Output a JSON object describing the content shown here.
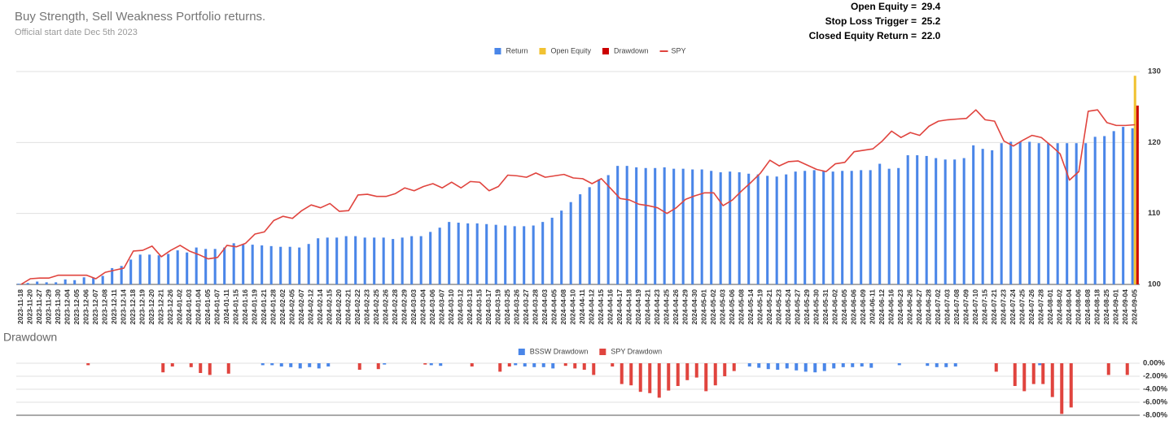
{
  "header": {
    "title": "Buy Strength, Sell Weakness Portfolio returns.",
    "subtitle": "Official start date Dec 5th 2023",
    "stats": [
      {
        "label": "Open Equity =",
        "value": "29.4"
      },
      {
        "label": "Stop Loss Trigger =",
        "value": "25.2"
      },
      {
        "label": "Closed Equity Return =",
        "value": "22.0"
      }
    ]
  },
  "chart_data": [
    {
      "type": "bar",
      "categories": [
        "2023-11-18",
        "2023-11-20",
        "2023-11-27",
        "2023-11-29",
        "2023-11-30",
        "2023-12-04",
        "2023-12-05",
        "2023-12-06",
        "2023-12-07",
        "2023-12-08",
        "2023-12-11",
        "2023-12-14",
        "2023-12-18",
        "2023-12-19",
        "2023-12-20",
        "2023-12-21",
        "2023-12-26",
        "2024-01-02",
        "2024-01-03",
        "2024-01-04",
        "2024-01-05",
        "2024-01-07",
        "2024-01-11",
        "2024-01-15",
        "2024-01-16",
        "2024-01-19",
        "2024-01-21",
        "2024-01-28",
        "2024-02-02",
        "2024-02-05",
        "2024-02-07",
        "2024-02-12",
        "2024-02-14",
        "2024-02-15",
        "2024-02-20",
        "2024-02-21",
        "2024-02-22",
        "2024-02-23",
        "2024-02-25",
        "2024-02-26",
        "2024-02-28",
        "2024-02-29",
        "2024-03-03",
        "2024-03-04",
        "2024-03-06",
        "2024-03-07",
        "2024-03-10",
        "2024-03-12",
        "2024-03-13",
        "2024-03-15",
        "2024-03-17",
        "2024-03-19",
        "2024-03-25",
        "2024-03-26",
        "2024-03-27",
        "2024-03-28",
        "2024-04-03",
        "2024-04-05",
        "2024-04-08",
        "2024-04-10",
        "2024-04-11",
        "2024-04-12",
        "2024-04-15",
        "2024-04-16",
        "2024-04-17",
        "2024-04-18",
        "2024-04-19",
        "2024-04-21",
        "2024-04-23",
        "2024-04-25",
        "2024-04-26",
        "2024-04-29",
        "2024-04-30",
        "2024-05-01",
        "2024-05-02",
        "2024-05-03",
        "2024-05-06",
        "2024-05-08",
        "2024-05-14",
        "2024-05-19",
        "2024-05-21",
        "2024-05-23",
        "2024-05-24",
        "2024-05-27",
        "2024-05-29",
        "2024-05-30",
        "2024-05-31",
        "2024-06-02",
        "2024-06-05",
        "2024-06-06",
        "2024-06-09",
        "2024-06-11",
        "2024-06-12",
        "2024-06-16",
        "2024-06-23",
        "2024-06-26",
        "2024-06-27",
        "2024-06-28",
        "2024-07-02",
        "2024-07-03",
        "2024-07-08",
        "2024-07-09",
        "2024-07-10",
        "2024-07-15",
        "2024-07-21",
        "2024-07-23",
        "2024-07-24",
        "2024-07-25",
        "2024-07-26",
        "2024-07-28",
        "2024-08-01",
        "2024-08-02",
        "2024-08-04",
        "2024-08-06",
        "2024-08-08",
        "2024-08-18",
        "2024-08-25",
        "2024-09-01",
        "2024-09-04",
        "2024-09-05"
      ],
      "series": [
        {
          "name": "Return",
          "type": "bar",
          "color": "#4a86e8",
          "values": [
            100.1,
            100.2,
            100.4,
            100.3,
            100.3,
            100.7,
            100.6,
            101.0,
            100.9,
            101.2,
            102.3,
            102.6,
            103.5,
            104.2,
            104.2,
            104.1,
            104.3,
            104.8,
            104.5,
            105.2,
            105.0,
            105.0,
            105.2,
            105.8,
            105.6,
            105.6,
            105.5,
            105.4,
            105.3,
            105.3,
            105.2,
            105.7,
            106.5,
            106.6,
            106.6,
            106.8,
            106.8,
            106.6,
            106.6,
            106.6,
            106.4,
            106.6,
            106.8,
            106.8,
            107.4,
            108.0,
            108.8,
            108.7,
            108.6,
            108.6,
            108.5,
            108.4,
            108.3,
            108.2,
            108.2,
            108.3,
            108.8,
            109.4,
            110.4,
            111.6,
            112.7,
            113.7,
            114.8,
            115.4,
            116.7,
            116.7,
            116.5,
            116.4,
            116.4,
            116.5,
            116.3,
            116.3,
            116.2,
            116.2,
            116.0,
            115.8,
            115.9,
            115.8,
            115.6,
            115.5,
            115.3,
            115.2,
            115.5,
            115.9,
            116.0,
            116.1,
            116.0,
            115.9,
            116.0,
            116.0,
            116.1,
            116.1,
            117.0,
            116.3,
            116.4,
            118.2,
            118.2,
            118.1,
            117.8,
            117.6,
            117.6,
            117.8,
            119.6,
            119.1,
            118.9,
            119.9,
            120.1,
            120.1,
            120.1,
            119.9,
            119.9,
            119.9,
            119.9,
            119.9,
            119.9,
            120.8,
            120.9,
            121.6,
            122.2,
            122.0
          ]
        },
        {
          "name": "Open Equity",
          "type": "bar",
          "color": "#f1c232",
          "values": [
            null,
            null,
            null,
            null,
            null,
            null,
            null,
            null,
            null,
            null,
            null,
            null,
            null,
            null,
            null,
            null,
            null,
            null,
            null,
            null,
            null,
            null,
            null,
            null,
            null,
            null,
            null,
            null,
            null,
            null,
            null,
            null,
            null,
            null,
            null,
            null,
            null,
            null,
            null,
            null,
            null,
            null,
            null,
            null,
            null,
            null,
            null,
            null,
            null,
            null,
            null,
            null,
            null,
            null,
            null,
            null,
            null,
            null,
            null,
            null,
            null,
            null,
            null,
            null,
            null,
            null,
            null,
            null,
            null,
            null,
            null,
            null,
            null,
            null,
            null,
            null,
            null,
            null,
            null,
            null,
            null,
            null,
            null,
            null,
            null,
            null,
            null,
            null,
            null,
            null,
            null,
            null,
            null,
            null,
            null,
            null,
            null,
            null,
            null,
            null,
            null,
            null,
            null,
            null,
            null,
            null,
            null,
            null,
            null,
            null,
            null,
            null,
            null,
            null,
            null,
            null,
            null,
            null,
            null,
            129.4
          ]
        },
        {
          "name": "Drawdown",
          "type": "bar",
          "color": "#cc0000",
          "values": [
            null,
            null,
            null,
            null,
            null,
            null,
            null,
            null,
            null,
            null,
            null,
            null,
            null,
            null,
            null,
            null,
            null,
            null,
            null,
            null,
            null,
            null,
            null,
            null,
            null,
            null,
            null,
            null,
            null,
            null,
            null,
            null,
            null,
            null,
            null,
            null,
            null,
            null,
            null,
            null,
            null,
            null,
            null,
            null,
            null,
            null,
            null,
            null,
            null,
            null,
            null,
            null,
            null,
            null,
            null,
            null,
            null,
            null,
            null,
            null,
            null,
            null,
            null,
            null,
            null,
            null,
            null,
            null,
            null,
            null,
            null,
            null,
            null,
            null,
            null,
            null,
            null,
            null,
            null,
            null,
            null,
            null,
            null,
            null,
            null,
            null,
            null,
            null,
            null,
            null,
            null,
            null,
            null,
            null,
            null,
            null,
            null,
            null,
            null,
            null,
            null,
            null,
            null,
            null,
            null,
            null,
            null,
            null,
            null,
            null,
            null,
            null,
            null,
            null,
            null,
            null,
            null,
            null,
            null,
            125.2
          ]
        },
        {
          "name": "SPY",
          "type": "line",
          "color": "#e0443e",
          "values": [
            100.0,
            100.8,
            100.9,
            100.9,
            101.3,
            101.3,
            101.3,
            101.3,
            100.8,
            101.7,
            102.0,
            102.3,
            104.7,
            104.8,
            105.4,
            103.9,
            104.8,
            105.5,
            104.7,
            104.2,
            103.6,
            103.8,
            105.5,
            105.3,
            105.8,
            107.1,
            107.4,
            109.0,
            109.6,
            109.3,
            110.4,
            111.2,
            110.8,
            111.4,
            110.3,
            110.4,
            112.6,
            112.7,
            112.4,
            112.4,
            112.8,
            113.6,
            113.2,
            113.8,
            114.2,
            113.6,
            114.4,
            113.6,
            114.5,
            114.4,
            113.2,
            113.8,
            115.4,
            115.3,
            115.1,
            115.7,
            115.1,
            115.3,
            115.5,
            115.0,
            114.9,
            114.2,
            114.9,
            113.5,
            112.1,
            111.9,
            111.3,
            111.1,
            110.8,
            110.0,
            110.8,
            112.0,
            112.5,
            112.9,
            112.9,
            111.1,
            111.9,
            113.2,
            114.4,
            115.7,
            117.5,
            116.7,
            117.3,
            117.4,
            116.8,
            116.2,
            115.9,
            117.0,
            117.2,
            118.7,
            118.9,
            119.1,
            120.2,
            121.6,
            120.7,
            121.4,
            121.0,
            122.3,
            123.0,
            123.2,
            123.3,
            123.4,
            124.6,
            123.2,
            123.0,
            120.2,
            119.5,
            120.3,
            121.0,
            120.7,
            119.6,
            118.4,
            114.7,
            115.9,
            124.4,
            124.6,
            122.8,
            122.4,
            122.4,
            122.5
          ]
        }
      ],
      "ylim": [
        100,
        130
      ],
      "yticks": [
        100,
        110,
        120,
        130
      ],
      "grid": true
    },
    {
      "type": "bar",
      "title": "Drawdown",
      "series": [
        {
          "name": "BSSW Drawdown",
          "type": "bar",
          "color": "#4a86e8",
          "values": [
            0,
            0,
            0,
            0,
            0,
            0,
            0,
            0,
            0,
            0,
            0,
            0,
            0,
            0,
            0,
            0,
            0,
            0,
            0,
            0,
            0,
            0,
            0,
            0,
            0,
            0,
            -0.3,
            -0.3,
            -0.5,
            -0.6,
            -0.8,
            -0.6,
            -0.8,
            -0.5,
            0,
            0,
            0,
            0,
            0,
            -0.2,
            0,
            0,
            0,
            0,
            -0.3,
            -0.4,
            0,
            0,
            0,
            0,
            0,
            0,
            0,
            -0.3,
            -0.5,
            -0.6,
            -0.6,
            -0.8,
            0,
            0,
            0,
            0,
            0,
            0,
            0,
            0,
            0,
            0,
            0,
            0,
            0,
            0,
            0,
            0,
            0,
            0,
            0,
            0,
            -0.5,
            -0.7,
            -0.9,
            -1.0,
            -0.8,
            -1.1,
            -1.3,
            -1.4,
            -1.2,
            -0.8,
            -0.6,
            -0.6,
            -0.5,
            -0.7,
            0,
            0,
            -0.3,
            0,
            0,
            -0.4,
            -0.6,
            -0.6,
            -0.5,
            0,
            0,
            0,
            0,
            0,
            0,
            0,
            0,
            -0.3,
            0,
            0,
            0,
            0,
            0,
            0,
            0,
            0,
            0,
            0
          ]
        },
        {
          "name": "SPY Drawdown",
          "type": "bar",
          "color": "#e0443e",
          "values": [
            0,
            0,
            0,
            0,
            0,
            0,
            0,
            -0.3,
            0,
            0,
            0,
            0,
            0,
            0,
            0,
            -1.4,
            -0.5,
            0,
            -0.6,
            -1.5,
            -1.8,
            0,
            -1.6,
            0,
            0,
            0,
            0,
            0,
            0,
            0,
            0,
            0,
            0,
            0,
            0,
            0,
            -1.0,
            0,
            -0.9,
            0,
            0,
            0,
            0,
            -0.2,
            0,
            0,
            0,
            0,
            -0.5,
            0,
            0,
            -1.3,
            -0.5,
            0,
            0,
            0,
            0,
            0,
            -0.4,
            -0.8,
            -1.0,
            -1.8,
            0,
            -0.5,
            -3.2,
            -3.4,
            -4.4,
            -4.6,
            -5.3,
            -4.2,
            -3.5,
            -2.6,
            -2.2,
            -4.3,
            -3.4,
            -2.0,
            -1.2,
            0,
            0,
            0,
            0,
            0,
            0,
            0,
            0,
            0,
            0,
            0,
            0,
            0,
            0,
            0,
            0,
            0,
            0,
            0,
            0,
            0,
            0,
            0,
            0,
            0,
            0,
            0,
            -1.3,
            0,
            -3.5,
            -4.3,
            -3.2,
            -3.2,
            -5.2,
            -7.8,
            -6.8,
            0,
            0,
            0,
            -1.8,
            0,
            -1.8,
            0
          ]
        }
      ],
      "ylim": [
        -8,
        0
      ],
      "yticks": [
        {
          "value": 0,
          "label": "0.00%"
        },
        {
          "value": -2,
          "label": "-2.00%"
        },
        {
          "value": -4,
          "label": "-4.00%"
        },
        {
          "value": -6,
          "label": "-6.00%"
        },
        {
          "value": -8,
          "label": "-8.00%"
        }
      ],
      "grid": true
    }
  ]
}
